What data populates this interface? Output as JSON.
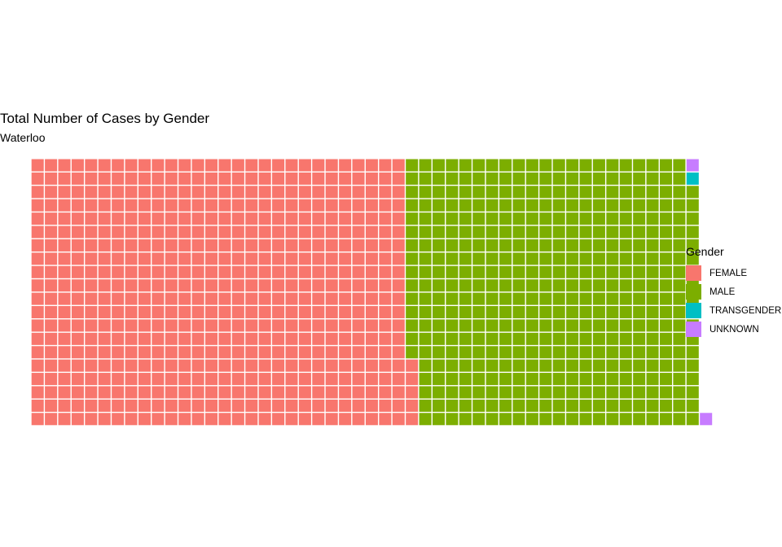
{
  "chart_data": {
    "type": "waffle",
    "title": "Total Number of Cases by Gender",
    "subtitle": "Waterloo",
    "legend_title": "Gender",
    "legend_position": "right",
    "rows": 20,
    "series": [
      {
        "name": "FEMALE",
        "value": 565,
        "color": "#F8766D"
      },
      {
        "name": "MALE",
        "value": 433,
        "color": "#7CAE00"
      },
      {
        "name": "TRANSGENDER",
        "value": 1,
        "color": "#00BFC4"
      },
      {
        "name": "UNKNOWN",
        "value": 2,
        "color": "#C77CFF"
      }
    ]
  }
}
